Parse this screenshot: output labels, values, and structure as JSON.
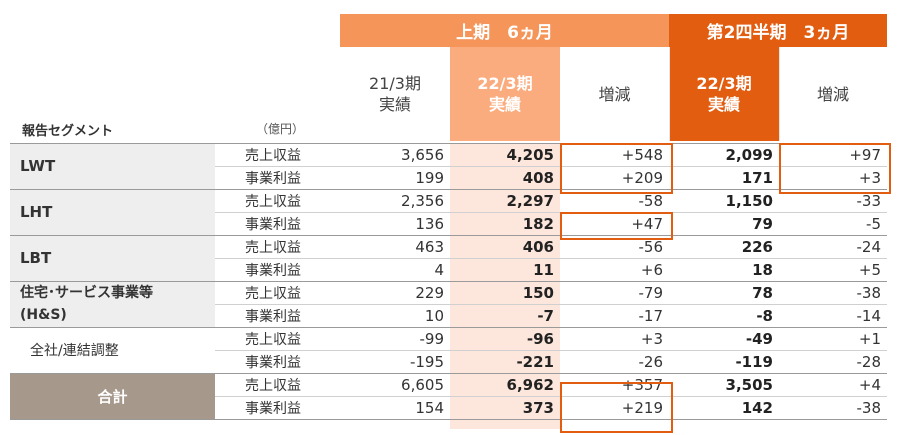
{
  "header": {
    "period1": "上期　6ヵ月",
    "period2": "第2四半期　3ヵ月"
  },
  "columns": {
    "a1": "21/3期",
    "a2": "実績",
    "b1": "22/3期",
    "b2": "実績",
    "c": "増減",
    "d1": "22/3期",
    "d2": "実績",
    "e": "増減"
  },
  "table_title": "報告セグメント",
  "unit": "（億円）",
  "segments": [
    {
      "name": "LWT",
      "rows": [
        {
          "label": "売上収益",
          "v": [
            "3,656",
            "4,205",
            "+548",
            "2,099",
            "+97"
          ]
        },
        {
          "label": "事業利益",
          "v": [
            "199",
            "408",
            "+209",
            "171",
            "+3"
          ]
        }
      ]
    },
    {
      "name": "LHT",
      "rows": [
        {
          "label": "売上収益",
          "v": [
            "2,356",
            "2,297",
            "-58",
            "1,150",
            "-33"
          ]
        },
        {
          "label": "事業利益",
          "v": [
            "136",
            "182",
            "+47",
            "79",
            "-5"
          ]
        }
      ]
    },
    {
      "name": "LBT",
      "rows": [
        {
          "label": "売上収益",
          "v": [
            "463",
            "406",
            "-56",
            "226",
            "-24"
          ]
        },
        {
          "label": "事業利益",
          "v": [
            "4",
            "11",
            "+6",
            "18",
            "+5"
          ]
        }
      ]
    },
    {
      "name": "住宅･サービス事業等",
      "name2": "(H&S)",
      "rows": [
        {
          "label": "売上収益",
          "v": [
            "229",
            "150",
            "-79",
            "78",
            "-38"
          ]
        },
        {
          "label": "事業利益",
          "v": [
            "10",
            "-7",
            "-17",
            "-8",
            "-14"
          ]
        }
      ]
    },
    {
      "name": "全社/連結調整",
      "rows": [
        {
          "label": "売上収益",
          "v": [
            "-99",
            "-96",
            "+3",
            "-49",
            "+1"
          ]
        },
        {
          "label": "事業利益",
          "v": [
            "-195",
            "-221",
            "-26",
            "-119",
            "-28"
          ]
        }
      ]
    },
    {
      "name": "合計",
      "rows": [
        {
          "label": "売上収益",
          "v": [
            "6,605",
            "6,962",
            "+357",
            "3,505",
            "+4"
          ]
        },
        {
          "label": "事業利益",
          "v": [
            "154",
            "373",
            "+219",
            "142",
            "-38"
          ]
        }
      ]
    }
  ],
  "colors": {
    "accent": "#e25d10",
    "accent_light": "#f6955a",
    "band": "#fde7dc",
    "total_bg": "#a7988c"
  }
}
